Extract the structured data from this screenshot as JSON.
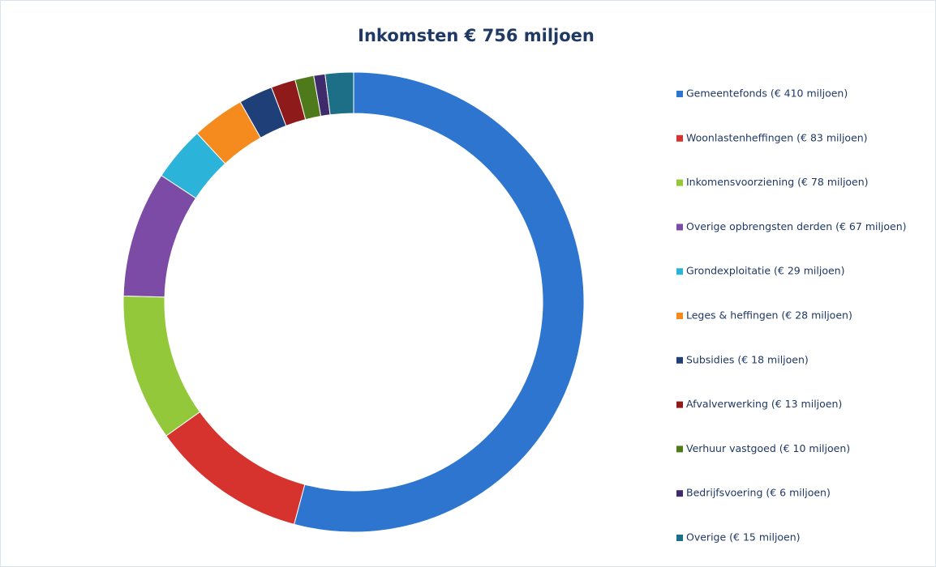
{
  "chart_data": {
    "type": "donut",
    "title": "Inkomsten € 756 miljoen",
    "categories": [
      "Gemeentefonds (€ 410 miljoen)",
      "Woonlastenheffingen (€ 83 miljoen)",
      "Inkomensvoorziening (€ 78 miljoen)",
      "Overige opbrengsten derden (€ 67 miljoen)",
      "Grondexploitatie (€ 29 miljoen)",
      "Leges & heffingen (€ 28 miljoen)",
      "Subsidies (€ 18 miljoen)",
      "Afvalverwerking (€ 13 miljoen)",
      "Verhuur vastgoed (€ 10 miljoen)",
      "Bedrijfsvoering (€ 6 miljoen)",
      "Overige (€ 15 miljoen)"
    ],
    "values": [
      410,
      83,
      78,
      67,
      29,
      28,
      18,
      13,
      10,
      6,
      15
    ],
    "colors": [
      "#2e75d0",
      "#d6332f",
      "#93c83a",
      "#7b4ba6",
      "#2bb3d9",
      "#f58a1f",
      "#1f3f78",
      "#8e1a1a",
      "#4f7a1c",
      "#3f2a6b",
      "#1c6f86"
    ],
    "legend": "right"
  }
}
